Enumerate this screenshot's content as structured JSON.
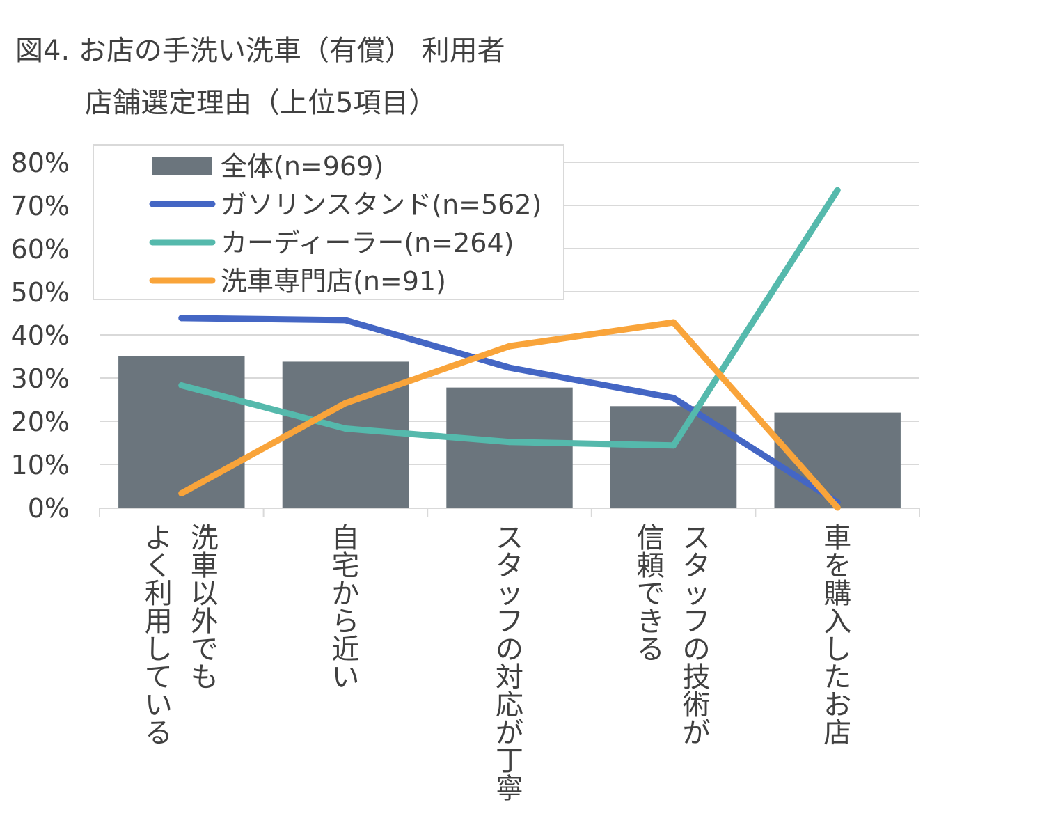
{
  "chart_data": {
    "type": "bar",
    "title": "図4. お店の手洗い洗車（有償） 利用者",
    "subtitle": "店舗選定理由（上位5項目）",
    "categories": [
      "洗車以外でもよく利用している",
      "自宅から近い",
      "スタッフの対応が丁寧",
      "スタッフの技術が信頼できる",
      "車を購入したお店"
    ],
    "category_lines": [
      [
        "洗車以外でも",
        "よく利用している"
      ],
      [
        "自宅から近い"
      ],
      [
        "スタッフの対応が丁寧"
      ],
      [
        "スタッフの技術が",
        "信頼できる"
      ],
      [
        "車を購入したお店"
      ]
    ],
    "ylim": [
      0,
      80
    ],
    "yticks": [
      0,
      10,
      20,
      30,
      40,
      50,
      60,
      70,
      80
    ],
    "ytick_labels": [
      "0%",
      "10%",
      "20%",
      "30%",
      "40%",
      "50%",
      "60%",
      "70%",
      "80%"
    ],
    "grid": true,
    "legend_position": "top-left",
    "series": [
      {
        "name": "全体(n=969)",
        "kind": "bar",
        "color": "#6b757d",
        "values": [
          35.0,
          33.8,
          27.8,
          23.5,
          22.0
        ]
      },
      {
        "name": "ガソリンスタンド(n=562)",
        "kind": "line",
        "color": "#4466c4",
        "values": [
          43.9,
          43.4,
          32.4,
          25.4,
          1.2
        ]
      },
      {
        "name": "カーディーラー(n=264)",
        "kind": "line",
        "color": "#55b9ac",
        "values": [
          28.3,
          18.3,
          15.2,
          14.4,
          73.5
        ]
      },
      {
        "name": "洗車専門店(n=91)",
        "kind": "line",
        "color": "#f9a43a",
        "values": [
          3.3,
          24.2,
          37.4,
          42.9,
          0.0
        ]
      }
    ]
  }
}
